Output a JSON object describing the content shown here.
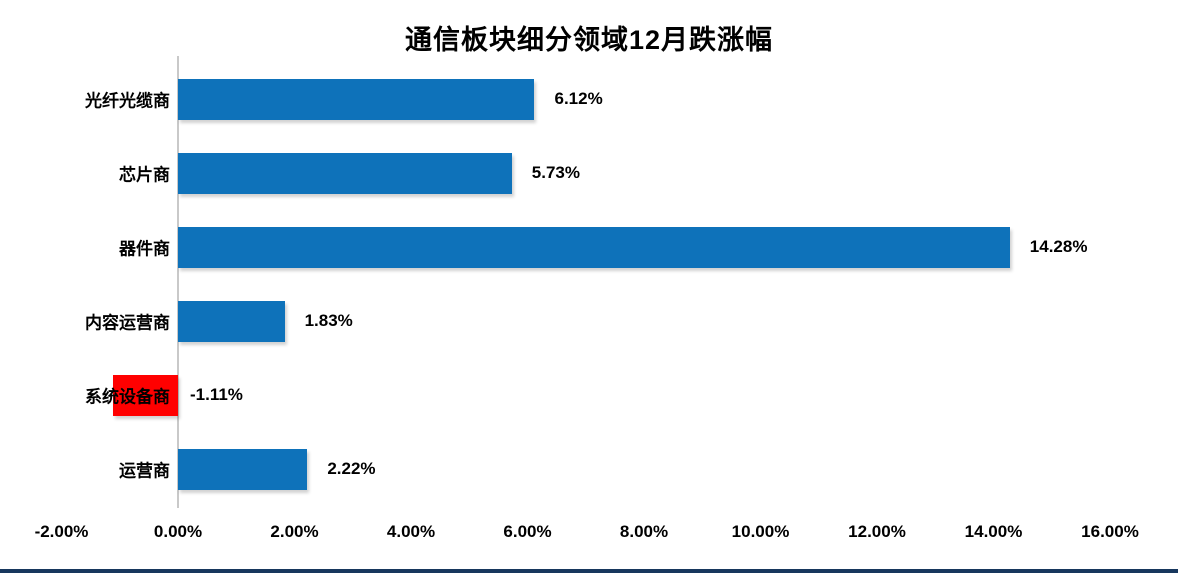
{
  "title": "通信板块细分领域12月跌涨幅",
  "colors": {
    "bar_positive": "#0e72ba",
    "bar_negative": "#ff0000",
    "axis_line": "#c9c9c9",
    "bottom_border": "#17375d",
    "text": "#000000",
    "background": "#ffffff"
  },
  "chart_data": {
    "type": "bar",
    "orientation": "horizontal",
    "title": "通信板块细分领域12月跌涨幅",
    "categories": [
      "光纤光缆商",
      "芯片商",
      "器件商",
      "内容运营商",
      "系统设备商",
      "运营商"
    ],
    "values": [
      6.12,
      5.73,
      14.28,
      1.83,
      -1.11,
      2.22
    ],
    "data_labels": [
      "6.12%",
      "5.73%",
      "14.28%",
      "1.83%",
      "-1.11%",
      "2.22%"
    ],
    "xlabel": "",
    "ylabel": "",
    "xlim": [
      -2,
      16
    ],
    "x_tick_values": [
      -2,
      0,
      2,
      4,
      6,
      8,
      10,
      12,
      14,
      16
    ],
    "x_tick_labels": [
      "-2.00%",
      "0.00%",
      "2.00%",
      "4.00%",
      "6.00%",
      "8.00%",
      "10.00%",
      "12.00%",
      "14.00%",
      "16.00%"
    ],
    "grid": false,
    "legend": false,
    "notes": "single series; negative value bar (系统设备商) drawn red, all others blue; value labels outside bar ends"
  }
}
